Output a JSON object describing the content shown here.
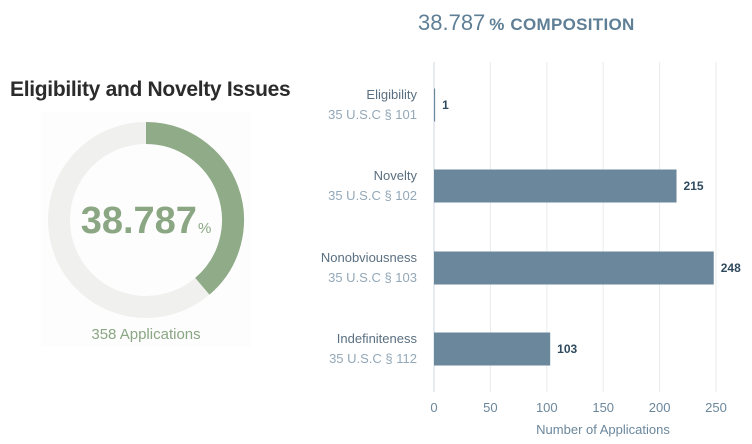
{
  "donut": {
    "title": "Eligibility and Novelty Issues",
    "value": "38.787",
    "unit": "%",
    "subtitle": "358 Applications",
    "percent": 38.787,
    "fill_color": "#8fab88",
    "track_color": "#f0f0ee"
  },
  "header": {
    "value": "38.787",
    "unit": "%",
    "title": "COMPOSITION"
  },
  "chart_data": {
    "type": "bar",
    "orientation": "horizontal",
    "categories": [
      {
        "name": "Eligibility",
        "code": "35 U.S.C § 101"
      },
      {
        "name": "Novelty",
        "code": "35 U.S.C § 102"
      },
      {
        "name": "Nonobviousness",
        "code": "35 U.S.C § 103"
      },
      {
        "name": "Indefiniteness",
        "code": "35 U.S.C § 112"
      }
    ],
    "values": [
      1,
      215,
      248,
      103
    ],
    "xlabel": "Number of Applications",
    "xticks": [
      "0",
      "50",
      "100",
      "150",
      "200",
      "250"
    ],
    "xlim": [
      0,
      250
    ],
    "bar_color": "#6b879c",
    "grid": true
  }
}
